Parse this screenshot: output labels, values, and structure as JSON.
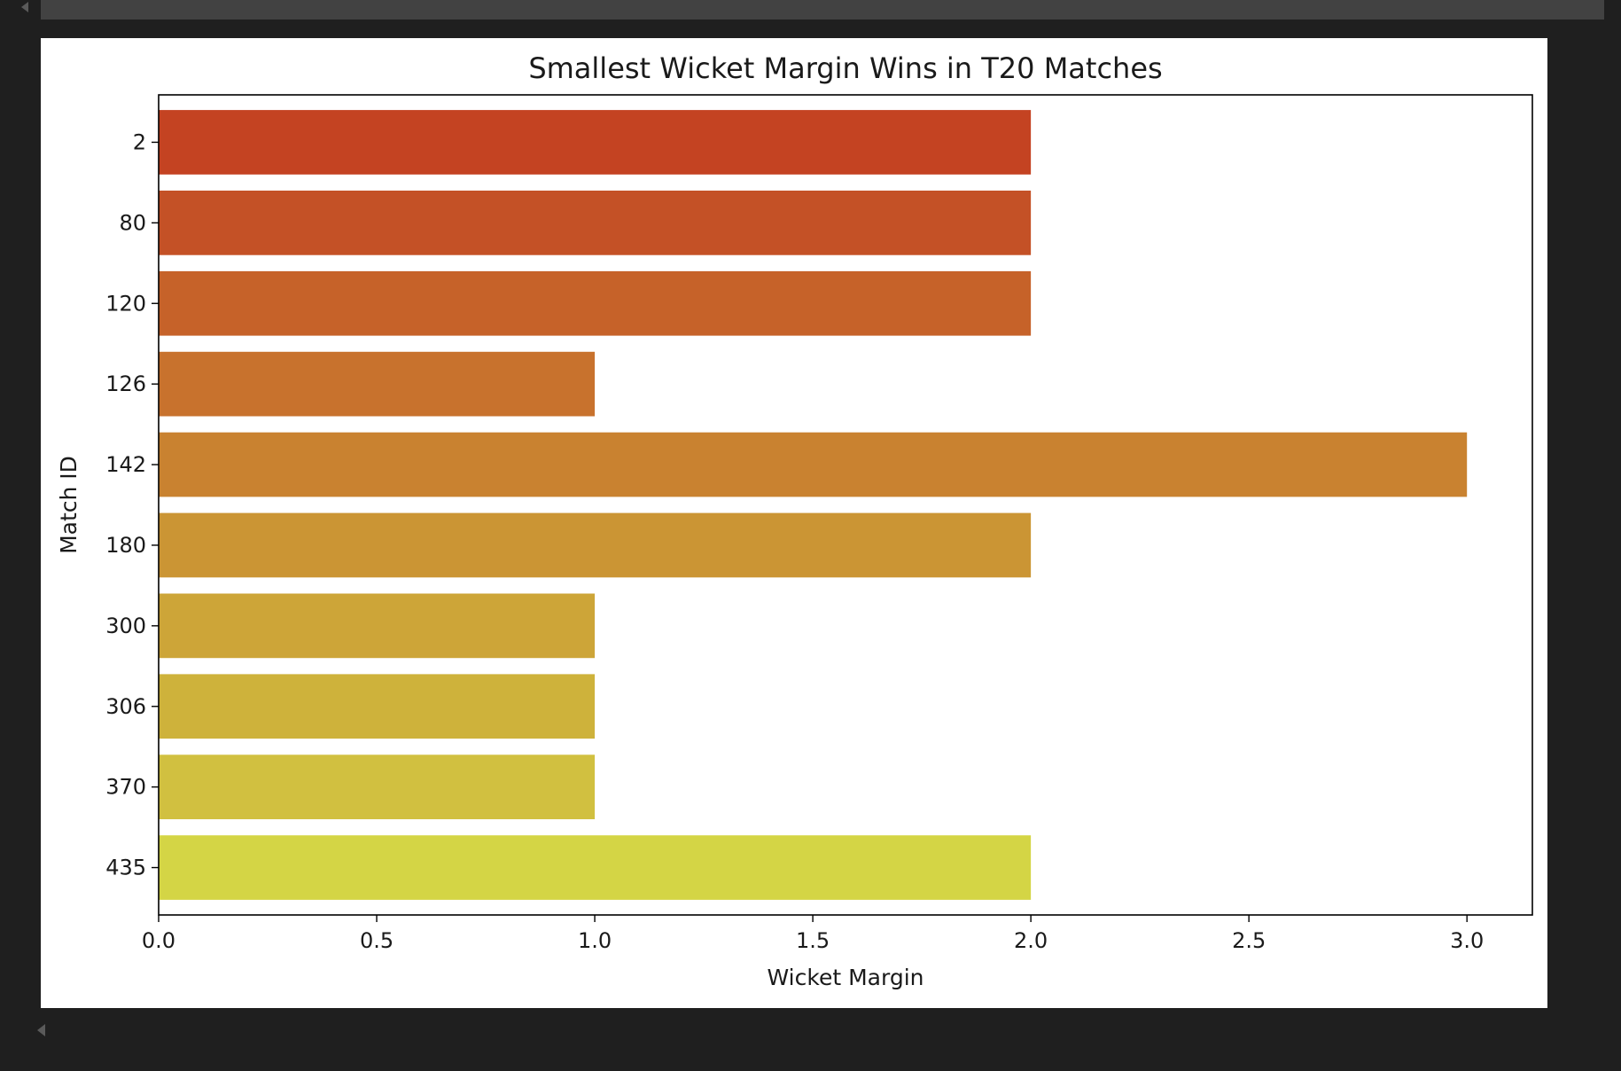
{
  "chart_data": {
    "type": "bar",
    "orientation": "horizontal",
    "title": "Smallest Wicket Margin Wins in T20 Matches",
    "xlabel": "Wicket Margin",
    "ylabel": "Match ID",
    "categories": [
      "2",
      "80",
      "120",
      "126",
      "142",
      "180",
      "300",
      "306",
      "370",
      "435"
    ],
    "values": [
      2,
      2,
      2,
      1,
      3,
      2,
      1,
      1,
      1,
      2
    ],
    "colors": [
      "#c44322",
      "#c45126",
      "#c66229",
      "#c8722d",
      "#c98230",
      "#cb9534",
      "#cda538",
      "#ceb23b",
      "#d1c040",
      "#d4d545"
    ],
    "xlim": [
      0,
      3.15
    ],
    "xticks": [
      "0.0",
      "0.5",
      "1.0",
      "1.5",
      "2.0",
      "2.5",
      "3.0"
    ],
    "grid": false,
    "legend": "none"
  }
}
